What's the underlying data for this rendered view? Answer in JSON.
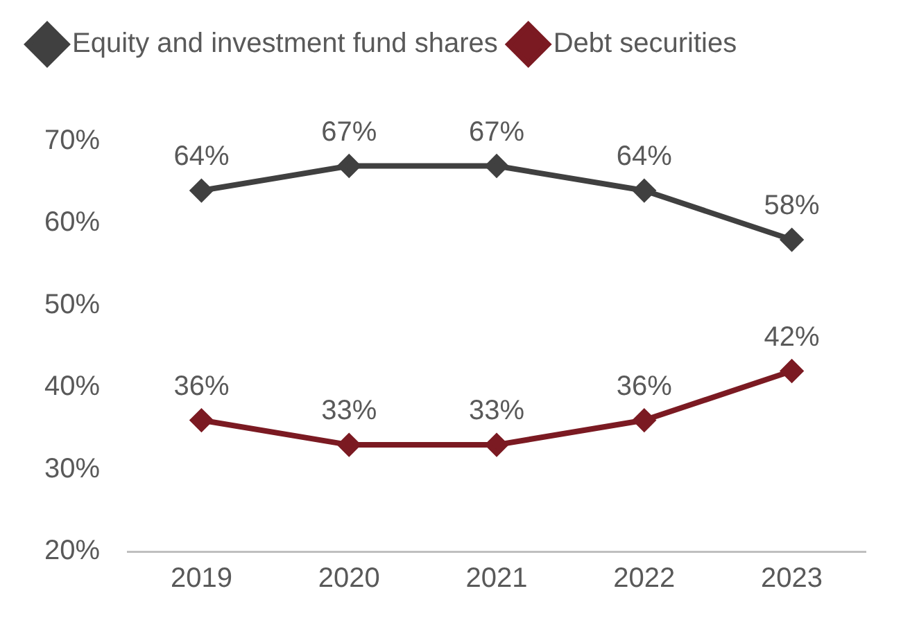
{
  "chart_data": {
    "type": "line",
    "categories": [
      "2019",
      "2020",
      "2021",
      "2022",
      "2023"
    ],
    "series": [
      {
        "name": "Equity and investment fund shares",
        "color": "#404040",
        "values": [
          64,
          67,
          67,
          64,
          58
        ],
        "value_labels": [
          "64%",
          "67%",
          "67%",
          "64%",
          "58%"
        ]
      },
      {
        "name": "Debt securities",
        "color": "#7b1a22",
        "values": [
          36,
          33,
          33,
          36,
          42
        ],
        "value_labels": [
          "36%",
          "33%",
          "33%",
          "36%",
          "42%"
        ]
      }
    ],
    "ylim": [
      20,
      70
    ],
    "yticks": [
      {
        "value": 20,
        "label": "20%"
      },
      {
        "value": 30,
        "label": "30%"
      },
      {
        "value": 40,
        "label": "40%"
      },
      {
        "value": 50,
        "label": "50%"
      },
      {
        "value": 60,
        "label": "60%"
      },
      {
        "value": 70,
        "label": "70%"
      }
    ],
    "grid": false,
    "legend": "top",
    "marker": "diamond",
    "line_style": "solid"
  }
}
